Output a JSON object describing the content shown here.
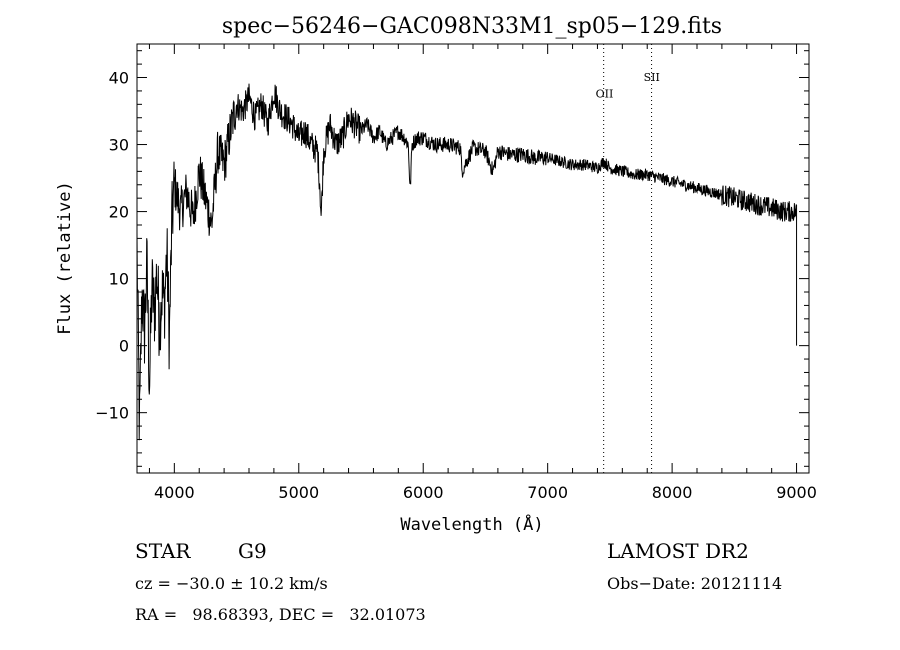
{
  "chart_data": {
    "type": "line",
    "title": "spec−56246−GAC098N33M1_sp05−129.fits",
    "xlabel": "Wavelength (Å)",
    "ylabel": "Flux (relative)",
    "xlim": [
      3700,
      9100
    ],
    "ylim": [
      -19,
      45
    ],
    "xticks": [
      4000,
      5000,
      6000,
      7000,
      8000,
      9000
    ],
    "xtick_labels": [
      "4000",
      "5000",
      "6000",
      "7000",
      "8000",
      "9000"
    ],
    "yticks": [
      -10,
      0,
      10,
      20,
      30,
      40
    ],
    "ytick_labels": [
      "−10",
      "0",
      "10",
      "20",
      "30",
      "40"
    ],
    "x_minor_step": 200,
    "y_minor_step": 2,
    "grid": false,
    "series": [
      {
        "x": [
          3700,
          3720,
          3740,
          3760,
          3780,
          3800,
          3820,
          3840,
          3860,
          3880,
          3900,
          3920,
          3940,
          3960,
          3980,
          4000,
          4050,
          4100,
          4150,
          4200,
          4250,
          4300,
          4350,
          4400,
          4450,
          4500,
          4550,
          4600,
          4650,
          4700,
          4750,
          4800,
          4850,
          4900,
          4950,
          5000,
          5050,
          5100,
          5150,
          5170,
          5180,
          5200,
          5250,
          5300,
          5350,
          5400,
          5450,
          5500,
          5550,
          5600,
          5650,
          5700,
          5750,
          5800,
          5850,
          5880,
          5895,
          5910,
          5950,
          6000,
          6100,
          6200,
          6300,
          6310,
          6400,
          6500,
          6560,
          6600,
          6700,
          6800,
          6900,
          7000,
          7100,
          7200,
          7300,
          7400,
          7450,
          7500,
          7600,
          7700,
          7800,
          7900,
          8000,
          8100,
          8200,
          8300,
          8400,
          8500,
          8600,
          8700,
          8800,
          8900,
          9000
        ],
        "y": [
          15,
          -13,
          8,
          2,
          12,
          -6,
          9,
          5,
          11,
          3,
          8,
          6,
          14,
          1,
          18,
          24,
          20,
          23,
          19,
          26,
          22,
          18,
          29,
          27,
          32,
          36,
          35,
          37,
          34,
          36,
          33,
          38,
          35,
          34,
          33,
          31,
          32,
          30,
          29,
          24,
          19,
          29,
          33,
          30,
          31,
          34,
          33,
          32,
          33,
          31,
          32,
          30,
          31,
          32,
          31,
          30,
          23,
          30,
          31,
          31,
          30,
          30,
          29.5,
          26,
          29.5,
          29,
          26,
          29,
          28.5,
          28.5,
          28,
          28,
          27.5,
          27,
          27,
          26.5,
          27.5,
          26.5,
          26,
          25.5,
          25.5,
          25,
          24.5,
          24,
          23.5,
          23,
          22.5,
          22,
          21.5,
          21,
          20.5,
          20,
          20
        ]
      }
    ],
    "vlines": [
      {
        "x": 7450,
        "label": "OII",
        "label_y": 37
      },
      {
        "x": 7835,
        "label": "SII",
        "label_y": 39.5
      }
    ],
    "error_bar": {
      "x": 9000,
      "ymin": 0,
      "ymax": 21
    }
  },
  "info": {
    "object_class": "STAR",
    "subclass": "G9",
    "survey": "LAMOST DR2",
    "cz": "cz = −30.0 ± 10.2 km/s",
    "obs_date": "Obs−Date: 20121114",
    "coords": "RA =   98.68393, DEC =   32.01073"
  },
  "colors": {
    "line": "#000000",
    "background": "#ffffff"
  }
}
